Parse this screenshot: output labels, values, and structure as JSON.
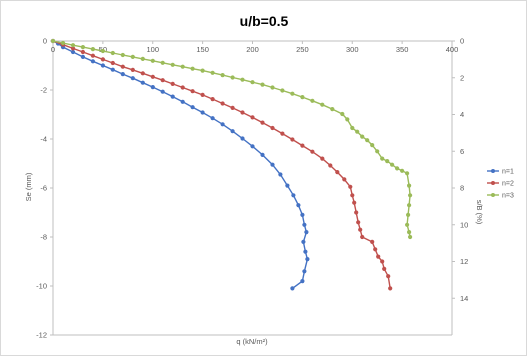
{
  "chart_data": {
    "type": "scatter",
    "title": "u/b=0.5",
    "xlabel": "q (kN/m²)",
    "ylabel": "Se (mm)",
    "y2label": "s/B (%)",
    "xlim": [
      0,
      400
    ],
    "ylim": [
      -12,
      0
    ],
    "y2lim": [
      16,
      0
    ],
    "x_ticks": [
      "0",
      "50",
      "100",
      "150",
      "200",
      "250",
      "300",
      "350",
      "400"
    ],
    "y_ticks": [
      "0",
      "-2",
      "-4",
      "-6",
      "-8",
      "-10",
      "-12"
    ],
    "y2_ticks": [
      "0",
      "2",
      "4",
      "6",
      "8",
      "10",
      "12",
      "14"
    ],
    "grid": false,
    "legend_position": "right",
    "series": [
      {
        "name": "n=1",
        "color": "#4472C4",
        "points": [
          [
            0,
            0
          ],
          [
            5,
            -0.1
          ],
          [
            10,
            -0.25
          ],
          [
            20,
            -0.45
          ],
          [
            30,
            -0.65
          ],
          [
            40,
            -0.83
          ],
          [
            50,
            -1.0
          ],
          [
            60,
            -1.17
          ],
          [
            70,
            -1.35
          ],
          [
            80,
            -1.52
          ],
          [
            90,
            -1.7
          ],
          [
            100,
            -1.88
          ],
          [
            110,
            -2.07
          ],
          [
            120,
            -2.27
          ],
          [
            130,
            -2.48
          ],
          [
            140,
            -2.7
          ],
          [
            150,
            -2.92
          ],
          [
            160,
            -3.15
          ],
          [
            170,
            -3.4
          ],
          [
            180,
            -3.68
          ],
          [
            190,
            -3.98
          ],
          [
            200,
            -4.3
          ],
          [
            210,
            -4.65
          ],
          [
            220,
            -5.05
          ],
          [
            228,
            -5.45
          ],
          [
            235,
            -5.9
          ],
          [
            241,
            -6.3
          ],
          [
            246,
            -6.7
          ],
          [
            250,
            -7.1
          ],
          [
            252,
            -7.5
          ],
          [
            254,
            -7.8
          ],
          [
            251,
            -8.2
          ],
          [
            253,
            -8.6
          ],
          [
            255,
            -8.9
          ],
          [
            252,
            -9.4
          ],
          [
            250,
            -9.8
          ],
          [
            240,
            -10.1
          ]
        ]
      },
      {
        "name": "n=2",
        "color": "#C0504D",
        "points": [
          [
            0,
            0
          ],
          [
            10,
            -0.15
          ],
          [
            20,
            -0.3
          ],
          [
            30,
            -0.45
          ],
          [
            40,
            -0.6
          ],
          [
            50,
            -0.75
          ],
          [
            60,
            -0.9
          ],
          [
            70,
            -1.05
          ],
          [
            80,
            -1.18
          ],
          [
            90,
            -1.32
          ],
          [
            100,
            -1.46
          ],
          [
            110,
            -1.6
          ],
          [
            120,
            -1.75
          ],
          [
            130,
            -1.9
          ],
          [
            140,
            -2.05
          ],
          [
            150,
            -2.2
          ],
          [
            160,
            -2.37
          ],
          [
            170,
            -2.55
          ],
          [
            180,
            -2.73
          ],
          [
            190,
            -2.92
          ],
          [
            200,
            -3.12
          ],
          [
            210,
            -3.33
          ],
          [
            220,
            -3.55
          ],
          [
            230,
            -3.78
          ],
          [
            240,
            -4.02
          ],
          [
            250,
            -4.27
          ],
          [
            260,
            -4.52
          ],
          [
            270,
            -4.8
          ],
          [
            278,
            -5.08
          ],
          [
            285,
            -5.35
          ],
          [
            292,
            -5.65
          ],
          [
            298,
            -5.95
          ],
          [
            300,
            -6.3
          ],
          [
            302,
            -6.6
          ],
          [
            304,
            -7.0
          ],
          [
            306,
            -7.4
          ],
          [
            308,
            -7.7
          ],
          [
            310,
            -8.0
          ],
          [
            320,
            -8.2
          ],
          [
            323,
            -8.5
          ],
          [
            326,
            -8.8
          ],
          [
            330,
            -9.0
          ],
          [
            332,
            -9.3
          ],
          [
            336,
            -9.6
          ],
          [
            338,
            -10.1
          ]
        ]
      },
      {
        "name": "n=3",
        "color": "#9BBB59",
        "points": [
          [
            0,
            0
          ],
          [
            10,
            -0.08
          ],
          [
            20,
            -0.17
          ],
          [
            30,
            -0.25
          ],
          [
            40,
            -0.33
          ],
          [
            50,
            -0.41
          ],
          [
            60,
            -0.49
          ],
          [
            70,
            -0.57
          ],
          [
            80,
            -0.65
          ],
          [
            90,
            -0.73
          ],
          [
            100,
            -0.81
          ],
          [
            110,
            -0.89
          ],
          [
            120,
            -0.97
          ],
          [
            130,
            -1.05
          ],
          [
            140,
            -1.13
          ],
          [
            150,
            -1.21
          ],
          [
            160,
            -1.3
          ],
          [
            170,
            -1.39
          ],
          [
            180,
            -1.49
          ],
          [
            190,
            -1.58
          ],
          [
            200,
            -1.68
          ],
          [
            210,
            -1.78
          ],
          [
            220,
            -1.9
          ],
          [
            230,
            -2.02
          ],
          [
            240,
            -2.15
          ],
          [
            250,
            -2.29
          ],
          [
            260,
            -2.44
          ],
          [
            270,
            -2.6
          ],
          [
            280,
            -2.78
          ],
          [
            290,
            -2.98
          ],
          [
            295,
            -3.2
          ],
          [
            300,
            -3.55
          ],
          [
            305,
            -3.7
          ],
          [
            310,
            -3.9
          ],
          [
            315,
            -4.05
          ],
          [
            320,
            -4.25
          ],
          [
            325,
            -4.5
          ],
          [
            330,
            -4.8
          ],
          [
            335,
            -4.9
          ],
          [
            340,
            -5.05
          ],
          [
            345,
            -5.2
          ],
          [
            350,
            -5.3
          ],
          [
            355,
            -5.4
          ],
          [
            357,
            -5.9
          ],
          [
            358,
            -6.3
          ],
          [
            357,
            -6.7
          ],
          [
            356,
            -7.1
          ],
          [
            355,
            -7.5
          ],
          [
            357,
            -7.8
          ],
          [
            358,
            -8.0
          ]
        ]
      }
    ]
  }
}
